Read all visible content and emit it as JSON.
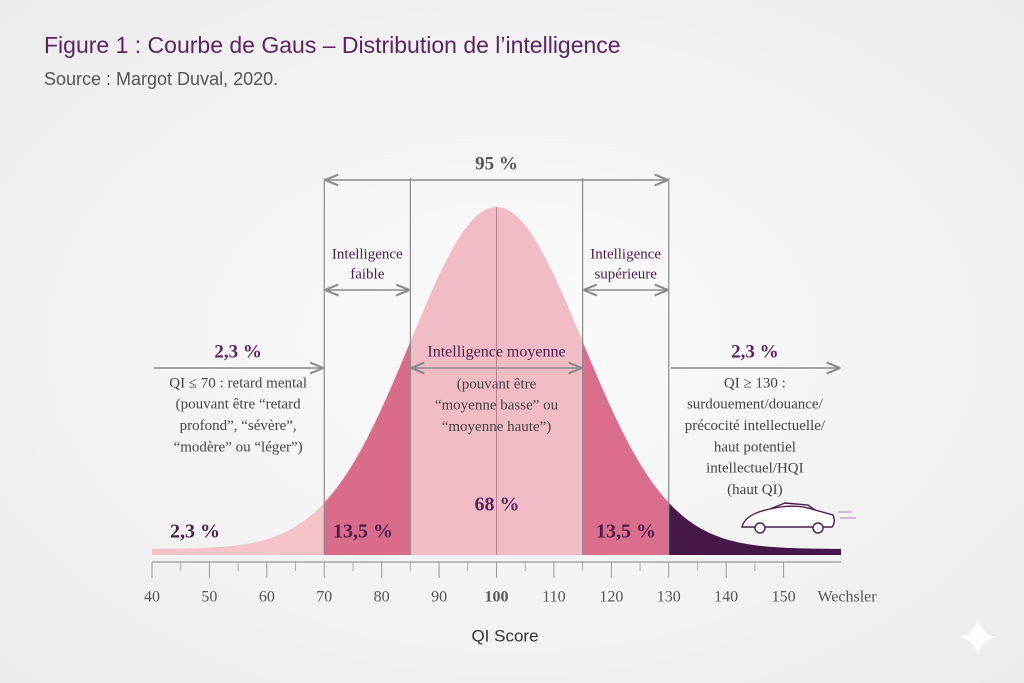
{
  "chart_data": {
    "type": "normal",
    "title": "Figure 1 : Courbe de Gaus – Distribution de l’intelligence",
    "subtitle": "Source : Margot Duval, 2020.",
    "x_label": "QI Score",
    "x_unit_label": "Wechsler",
    "xlim": [
      40,
      160
    ],
    "xticks": [
      40,
      50,
      60,
      70,
      80,
      90,
      100,
      110,
      120,
      130,
      140,
      150
    ],
    "regions": [
      {
        "from": 40,
        "to": 70,
        "value": 2.3,
        "value_label": "2,3 %",
        "color": "#f4c3c9"
      },
      {
        "from": 70,
        "to": 85,
        "value": 13.5,
        "value_label": "13,5 %",
        "color": "#d96b8b"
      },
      {
        "from": 85,
        "to": 115,
        "value": 68,
        "value_label": "68 %",
        "color": "#f2bcc6"
      },
      {
        "from": 115,
        "to": 130,
        "value": 13.5,
        "value_label": "13,5 %",
        "color": "#dc6e8d"
      },
      {
        "from": 130,
        "to": 160,
        "value": 2.3,
        "color": "#47174a"
      }
    ],
    "brackets": [
      {
        "from": 70,
        "to": 130,
        "value": 95,
        "label": [
          "95 %"
        ]
      },
      {
        "from": 70,
        "to": 85,
        "label": [
          "Intelligence",
          "faible"
        ]
      },
      {
        "from": 115,
        "to": 130,
        "label": [
          "Intelligence",
          "supérieure"
        ]
      },
      {
        "from": 85,
        "to": 115,
        "label": [
          "Intelligence moyenne"
        ],
        "note": [
          "(pouvant être",
          "“moyenne basse” ou",
          "“moyenne haute”)"
        ]
      },
      {
        "from": 40,
        "to": 70,
        "value": 2.3,
        "label": [
          "2,3 %"
        ],
        "note": [
          "QI ≤ 70 : retard mental",
          "(pouvant être “retard",
          "profond”, “sévère”,",
          "“modère” ou “léger”)"
        ]
      },
      {
        "from": 130,
        "to": 160,
        "value": 2.3,
        "label": [
          "2,3 %"
        ],
        "note": [
          "QI ≥ 130 :",
          "surdouement/douance/",
          "précocité intellectuelle/",
          "haut potentiel",
          "intellectuel/HQI",
          "(haut QI)"
        ]
      }
    ]
  }
}
